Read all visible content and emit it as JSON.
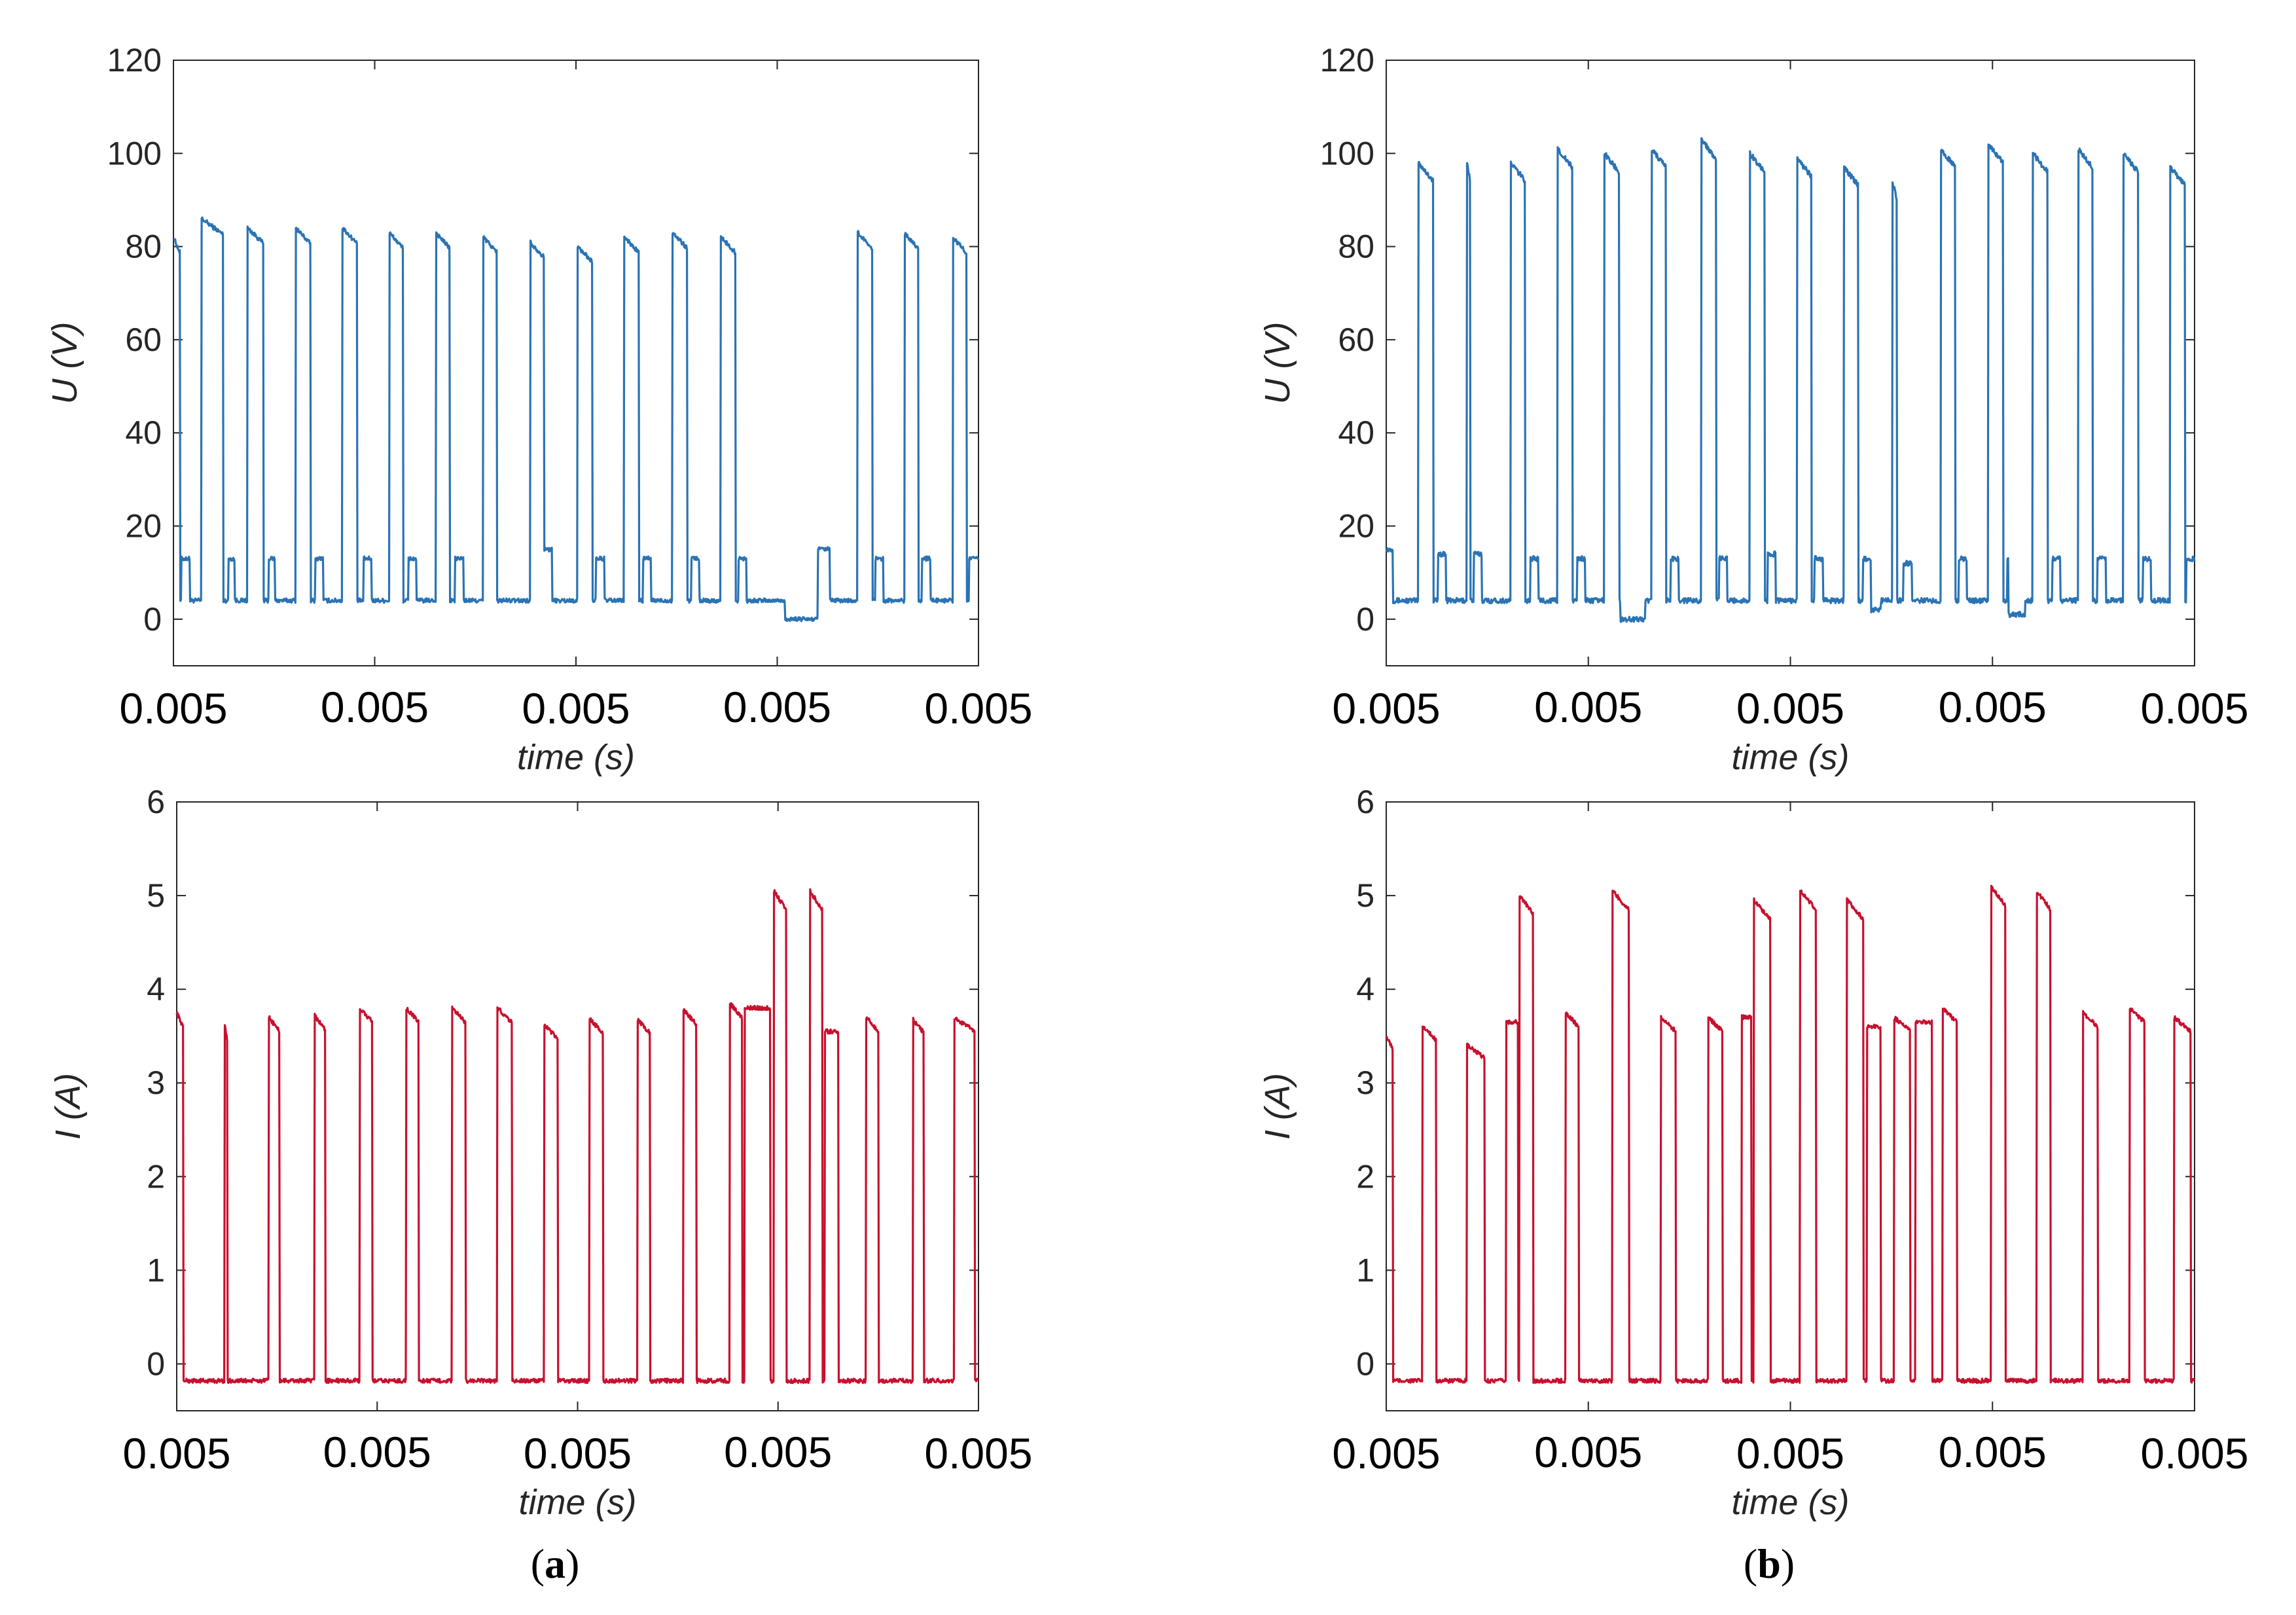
{
  "figure": {
    "panel_labels": [
      {
        "open": "(",
        "letter": "a",
        "close": ")"
      },
      {
        "open": "(",
        "letter": "b",
        "close": ")"
      }
    ]
  },
  "colors": {
    "voltage": "#2a73b4",
    "current": "#c8102e",
    "axis": "#262626",
    "grid_frame": "#262626"
  },
  "chart_data": [
    {
      "id": "a-voltage",
      "type": "line",
      "title": "",
      "xlabel": "time (s)",
      "ylabel": "U (V)",
      "ylim": [
        -10,
        120
      ],
      "yticks": [
        0,
        20,
        40,
        60,
        80,
        100,
        120
      ],
      "xlim": [
        0,
        1
      ],
      "xtick_labels": [
        "0.005",
        "0.005",
        "0.005",
        "0.005",
        "0.005"
      ],
      "grid": false,
      "series": [
        {
          "name": "U",
          "color": "#2a73b4",
          "low": 4,
          "high": 83,
          "pulses": [
            [
              0.0,
              0.008,
              82
            ],
            [
              0.035,
              0.062,
              86
            ],
            [
              0.092,
              0.112,
              84
            ],
            [
              0.152,
              0.17,
              84
            ],
            [
              0.21,
              0.228,
              84
            ],
            [
              0.268,
              0.285,
              83
            ],
            [
              0.326,
              0.343,
              83
            ],
            [
              0.385,
              0.402,
              82
            ],
            [
              0.443,
              0.46,
              81
            ],
            [
              0.502,
              0.52,
              80
            ],
            [
              0.56,
              0.578,
              82
            ],
            [
              0.62,
              0.638,
              83
            ],
            [
              0.68,
              0.698,
              82
            ],
            [
              0.85,
              0.868,
              83
            ],
            [
              0.908,
              0.925,
              83
            ],
            [
              0.968,
              0.985,
              82
            ]
          ],
          "shelves": [
            [
              0.01,
              0.02,
              13
            ],
            [
              0.068,
              0.076,
              13
            ],
            [
              0.118,
              0.126,
              13
            ],
            [
              0.176,
              0.186,
              13
            ],
            [
              0.236,
              0.246,
              13
            ],
            [
              0.292,
              0.302,
              13
            ],
            [
              0.35,
              0.36,
              13
            ],
            [
              0.455,
              0.47,
              15
            ],
            [
              0.525,
              0.535,
              13
            ],
            [
              0.583,
              0.593,
              13
            ],
            [
              0.643,
              0.653,
              13
            ],
            [
              0.702,
              0.712,
              13
            ],
            [
              0.79,
              0.815,
              15
            ],
            [
              0.872,
              0.882,
              13
            ],
            [
              0.93,
              0.94,
              13
            ],
            [
              0.988,
              1.0,
              13
            ]
          ],
          "dips": [
            [
              0.76,
              0.8,
              0
            ]
          ]
        }
      ]
    },
    {
      "id": "b-voltage",
      "type": "line",
      "title": "",
      "xlabel": "time (s)",
      "ylabel": "U (V)",
      "ylim": [
        -10,
        120
      ],
      "yticks": [
        0,
        20,
        40,
        60,
        80,
        100,
        120
      ],
      "xlim": [
        0,
        1
      ],
      "xtick_labels": [
        "0.005",
        "0.005",
        "0.005",
        "0.005",
        "0.005"
      ],
      "grid": false,
      "series": [
        {
          "name": "U",
          "color": "#2a73b4",
          "low": 4,
          "high": 98,
          "pulses": [
            [
              0.04,
              0.058,
              98
            ],
            [
              0.1,
              0.104,
              98
            ],
            [
              0.154,
              0.172,
              98
            ],
            [
              0.212,
              0.23,
              101
            ],
            [
              0.27,
              0.288,
              100
            ],
            [
              0.328,
              0.346,
              101
            ],
            [
              0.39,
              0.408,
              103
            ],
            [
              0.45,
              0.468,
              100
            ],
            [
              0.508,
              0.526,
              99
            ],
            [
              0.566,
              0.584,
              97
            ],
            [
              0.626,
              0.632,
              94
            ],
            [
              0.686,
              0.704,
              101
            ],
            [
              0.745,
              0.763,
              102
            ],
            [
              0.8,
              0.818,
              100
            ],
            [
              0.856,
              0.874,
              101
            ],
            [
              0.912,
              0.93,
              100
            ],
            [
              0.97,
              0.988,
              97
            ]
          ],
          "shelves": [
            [
              0.0,
              0.008,
              15
            ],
            [
              0.064,
              0.074,
              14
            ],
            [
              0.108,
              0.118,
              14
            ],
            [
              0.178,
              0.188,
              13
            ],
            [
              0.236,
              0.246,
              13
            ],
            [
              0.292,
              0.302,
              13
            ],
            [
              0.352,
              0.362,
              13
            ],
            [
              0.412,
              0.422,
              13
            ],
            [
              0.472,
              0.482,
              14
            ],
            [
              0.53,
              0.54,
              13
            ],
            [
              0.59,
              0.6,
              13
            ],
            [
              0.64,
              0.65,
              12
            ],
            [
              0.708,
              0.718,
              13
            ],
            [
              0.768,
              0.778,
              13
            ],
            [
              0.824,
              0.834,
              13
            ],
            [
              0.88,
              0.89,
              13
            ],
            [
              0.936,
              0.946,
              13
            ],
            [
              0.99,
              1.0,
              13
            ]
          ],
          "dips": [
            [
              0.29,
              0.32,
              0
            ],
            [
              0.6,
              0.612,
              2
            ],
            [
              0.77,
              0.79,
              1
            ]
          ]
        }
      ]
    },
    {
      "id": "a-current",
      "type": "line",
      "title": "",
      "xlabel": "time (s)",
      "ylabel": "I (A)",
      "ylim": [
        -0.5,
        6
      ],
      "yticks": [
        0,
        1,
        2,
        3,
        4,
        5,
        6
      ],
      "xlim": [
        0,
        1
      ],
      "xtick_labels": [
        "0.005",
        "0.005",
        "0.005",
        "0.005",
        "0.005"
      ],
      "grid": false,
      "series": [
        {
          "name": "I",
          "color": "#c8102e",
          "low": -0.18,
          "high": 3.7,
          "pulses": [
            [
              0.0,
              0.008,
              3.75
            ],
            [
              0.06,
              0.063,
              3.6
            ],
            [
              0.115,
              0.128,
              3.7
            ],
            [
              0.172,
              0.185,
              3.72
            ],
            [
              0.228,
              0.244,
              3.8
            ],
            [
              0.286,
              0.302,
              3.8
            ],
            [
              0.343,
              0.36,
              3.8
            ],
            [
              0.4,
              0.418,
              3.8
            ],
            [
              0.458,
              0.475,
              3.62
            ],
            [
              0.515,
              0.532,
              3.68
            ],
            [
              0.575,
              0.59,
              3.68
            ],
            [
              0.632,
              0.648,
              3.78
            ],
            [
              0.69,
              0.705,
              3.85
            ],
            [
              0.745,
              0.76,
              5.05
            ],
            [
              0.79,
              0.805,
              5.05
            ],
            [
              0.86,
              0.875,
              3.7
            ],
            [
              0.918,
              0.932,
              3.68
            ],
            [
              0.97,
              0.995,
              3.7
            ]
          ],
          "shelves": [
            [
              0.708,
              0.74,
              3.8
            ],
            [
              0.808,
              0.825,
              3.55
            ]
          ],
          "dips": []
        }
      ]
    },
    {
      "id": "b-current",
      "type": "line",
      "title": "",
      "xlabel": "time (s)",
      "ylabel": "I (A)",
      "ylim": [
        -0.5,
        6
      ],
      "yticks": [
        0,
        1,
        2,
        3,
        4,
        5,
        6
      ],
      "xlim": [
        0,
        1
      ],
      "xtick_labels": [
        "0.005",
        "0.005",
        "0.005",
        "0.005",
        "0.005"
      ],
      "grid": false,
      "series": [
        {
          "name": "I",
          "color": "#c8102e",
          "low": -0.18,
          "high": 3.6,
          "pulses": [
            [
              0.0,
              0.008,
              3.5
            ],
            [
              0.045,
              0.062,
              3.6
            ],
            [
              0.1,
              0.122,
              3.4
            ],
            [
              0.165,
              0.182,
              5.0
            ],
            [
              0.222,
              0.238,
              3.75
            ],
            [
              0.28,
              0.3,
              5.05
            ],
            [
              0.34,
              0.358,
              3.7
            ],
            [
              0.398,
              0.416,
              3.7
            ],
            [
              0.455,
              0.475,
              4.95
            ],
            [
              0.512,
              0.532,
              5.05
            ],
            [
              0.57,
              0.59,
              4.95
            ],
            [
              0.628,
              0.648,
              3.7
            ],
            [
              0.688,
              0.706,
              3.8
            ],
            [
              0.748,
              0.766,
              5.1
            ],
            [
              0.805,
              0.822,
              5.05
            ],
            [
              0.862,
              0.88,
              3.75
            ],
            [
              0.92,
              0.938,
              3.8
            ],
            [
              0.975,
              0.995,
              3.7
            ]
          ],
          "shelves": [
            [
              0.148,
              0.163,
              3.65
            ],
            [
              0.44,
              0.452,
              3.7
            ],
            [
              0.595,
              0.612,
              3.6
            ],
            [
              0.655,
              0.675,
              3.65
            ]
          ],
          "dips": []
        }
      ]
    }
  ]
}
